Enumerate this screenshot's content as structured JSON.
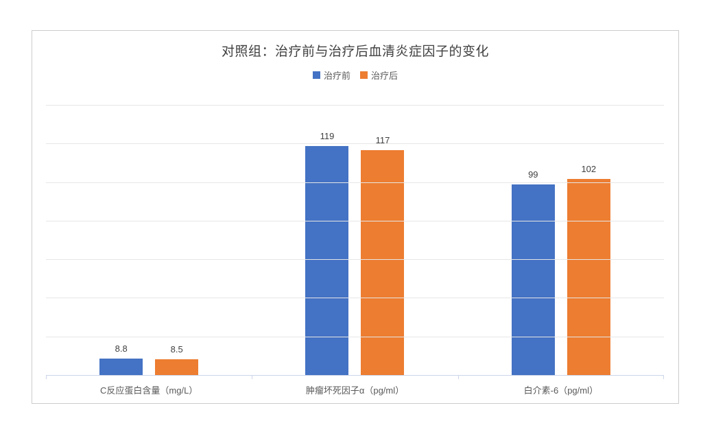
{
  "chart_data": {
    "type": "bar",
    "title": "对照组：治疗前与治疗后血清炎症因子的变化",
    "categories": [
      "C反应蛋白含量（mg/L）",
      "肿瘤坏死因子α（pg/ml）",
      "白介素-6（pg/ml）"
    ],
    "series": [
      {
        "name": "治疗前",
        "color": "#4472C4",
        "values": [
          8.8,
          119,
          99
        ]
      },
      {
        "name": "治疗后",
        "color": "#ED7D31",
        "values": [
          8.5,
          117,
          102
        ]
      }
    ],
    "value_labels": [
      [
        "8.8",
        "119",
        "99"
      ],
      [
        "8.5",
        "117",
        "102"
      ]
    ],
    "xlabel": "",
    "ylabel": "",
    "ylim": [
      0,
      140
    ],
    "gridline_interval": 20,
    "grid": true,
    "y_tick_labels_visible": false,
    "legend_position": "top"
  },
  "colors": {
    "series_before": "#4472C4",
    "series_after": "#ED7D31",
    "gridline": "#e6e6e6",
    "axis_line": "#ccd5e8",
    "title_text": "#404040",
    "label_text": "#595959",
    "chart_border": "#cccccc"
  }
}
